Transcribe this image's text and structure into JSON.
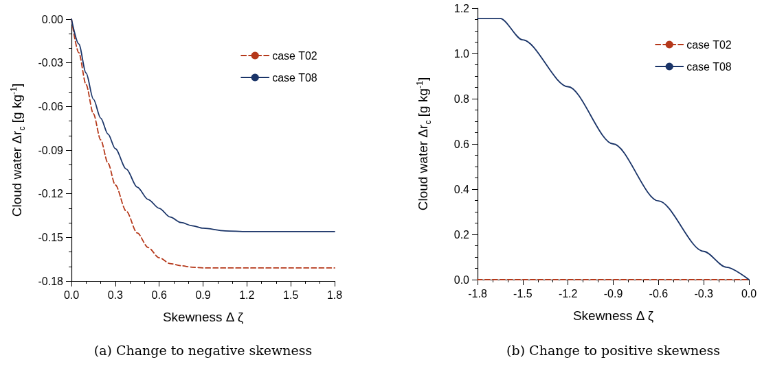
{
  "chart_data": [
    {
      "type": "line",
      "xlabel": "Skewness Δ ζ",
      "ylabel": "Cloud water Δr$_{c}$ [g kg$^{-1}$]",
      "annotations": [
        "(a) Change to negative skewness"
      ],
      "legend": "top right",
      "grid": false,
      "marker": "none",
      "xlim": [
        0,
        1.8
      ],
      "xticks": [
        {
          "value": 0,
          "label": "0.0"
        },
        0.3,
        0.6,
        0.9,
        1.2,
        1.5,
        1.8
      ],
      "ylim": [
        -0.18,
        0
      ],
      "yticks": [
        {
          "value": -0.18,
          "label": "-0.18"
        },
        {
          "value": -0.15,
          "label": "-0.15"
        },
        {
          "value": -0.12,
          "label": "-0.12"
        },
        {
          "value": -0.09,
          "label": "-0.09"
        },
        {
          "value": -0.06,
          "label": "-0.06"
        },
        {
          "value": -0.03,
          "label": "-0.03"
        },
        {
          "value": 0,
          "label": "0.00"
        }
      ],
      "series": [
        {
          "name": "case T02",
          "color": "#b5381a",
          "line_style": "dashed",
          "x": [
            0,
            0.05,
            0.1,
            0.15,
            0.2,
            0.25,
            0.3,
            0.375,
            0.45,
            0.525,
            0.6,
            0.675,
            0.75,
            0.825,
            0.9,
            1.2,
            1.5,
            1.8
          ],
          "values": [
            0,
            -0.023,
            -0.045,
            -0.065,
            -0.083,
            -0.099,
            -0.114,
            -0.132,
            -0.147,
            -0.157,
            -0.164,
            -0.168,
            -0.1695,
            -0.1705,
            -0.171,
            -0.171,
            -0.171,
            -0.171
          ]
        },
        {
          "name": "case T08",
          "color": "#1a3468",
          "line_style": "solid",
          "x": [
            0,
            0.05,
            0.1,
            0.15,
            0.2,
            0.25,
            0.3,
            0.375,
            0.45,
            0.525,
            0.6,
            0.675,
            0.75,
            0.825,
            0.9,
            1.05,
            1.2,
            1.5,
            1.8
          ],
          "values": [
            0,
            -0.017,
            -0.037,
            -0.055,
            -0.068,
            -0.079,
            -0.089,
            -0.103,
            -0.1155,
            -0.124,
            -0.13,
            -0.136,
            -0.1398,
            -0.142,
            -0.1437,
            -0.1455,
            -0.146,
            -0.146,
            -0.146
          ]
        }
      ]
    },
    {
      "type": "line",
      "xlabel": "Skewness Δ ζ",
      "ylabel": "Cloud water Δr$_{c}$ [g kg$^{-1}$]",
      "annotations": [
        "(b) Change to positive skewness"
      ],
      "legend": "top right",
      "grid": false,
      "marker": "none",
      "xlim": [
        -1.8,
        0
      ],
      "xticks": [
        -1.8,
        -1.5,
        -1.2,
        -0.9,
        -0.6,
        -0.3,
        {
          "value": 0,
          "label": "0.0"
        }
      ],
      "ylim": [
        0,
        1.2
      ],
      "yticks": [
        {
          "value": 0,
          "label": "0.0"
        },
        0.2,
        0.4,
        0.6,
        0.8,
        {
          "value": 1,
          "label": "1.0"
        },
        1.2
      ],
      "series": [
        {
          "name": "case T02",
          "color": "#b5381a",
          "line_style": "dashed",
          "x": [
            -1.8,
            0
          ],
          "values": [
            0,
            0
          ]
        },
        {
          "name": "case T08",
          "color": "#1a3468",
          "line_style": "solid",
          "x": [
            -1.8,
            -1.65,
            -1.5,
            -1.2,
            -0.9,
            -0.6,
            -0.3,
            -0.15,
            0
          ],
          "values": [
            1.155,
            1.155,
            1.06,
            0.853,
            0.6,
            0.348,
            0.125,
            0.055,
            0
          ]
        }
      ]
    }
  ]
}
